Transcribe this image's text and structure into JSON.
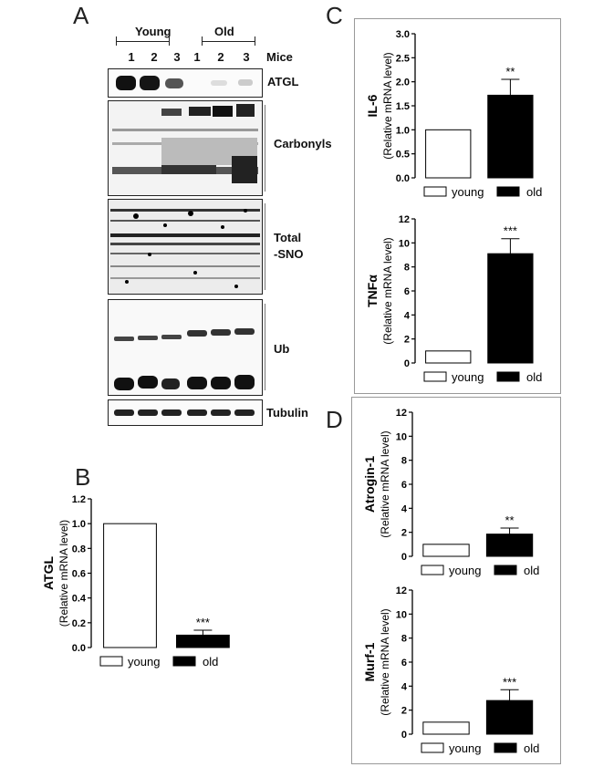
{
  "panels": {
    "a": "A",
    "b": "B",
    "c": "C",
    "d": "D"
  },
  "western": {
    "group_young": "Young",
    "group_old": "Old",
    "mice_label": "Mice",
    "lanes": [
      "1",
      "2",
      "3",
      "1",
      "2",
      "3"
    ],
    "blots": [
      {
        "label": "ATGL"
      },
      {
        "label": "Carbonyls"
      },
      {
        "label": "Total\n-SNO"
      },
      {
        "label": "Ub"
      },
      {
        "label": "Tubulin"
      }
    ]
  },
  "legend": {
    "young": "young",
    "old": "old"
  },
  "chart_data": [
    {
      "panel": "B",
      "type": "bar",
      "ytitle": "ATGL",
      "ylabel": "(Relative mRNA level)",
      "categories": [
        "young",
        "old"
      ],
      "values": [
        1.0,
        0.1
      ],
      "errors": [
        0,
        0.04
      ],
      "significance": "***",
      "ylim": [
        0,
        1.2
      ],
      "yticks": [
        "0.0",
        "0.2",
        "0.4",
        "0.6",
        "0.8",
        "1.0",
        "1.2"
      ]
    },
    {
      "panel": "C",
      "type": "bar",
      "ytitle": "IL-6",
      "ylabel": "(Relative mRNA level)",
      "categories": [
        "young",
        "old"
      ],
      "values": [
        1.0,
        1.72
      ],
      "errors": [
        0,
        0.33
      ],
      "significance": "**",
      "ylim": [
        0,
        3.0
      ],
      "yticks": [
        "0.0",
        "0.5",
        "1.0",
        "1.5",
        "2.0",
        "2.5",
        "3.0"
      ]
    },
    {
      "panel": "C",
      "type": "bar",
      "ytitle": "TNFα",
      "ylabel": "(Relative mRNA level)",
      "categories": [
        "young",
        "old"
      ],
      "values": [
        1.0,
        9.1
      ],
      "errors": [
        0,
        1.25
      ],
      "significance": "***",
      "ylim": [
        0,
        12
      ],
      "yticks": [
        "0",
        "2",
        "4",
        "6",
        "8",
        "10",
        "12"
      ]
    },
    {
      "panel": "D",
      "type": "bar",
      "ytitle": "Atrogin-1",
      "ylabel": "(Relative mRNA level)",
      "categories": [
        "young",
        "old"
      ],
      "values": [
        1.0,
        1.85
      ],
      "errors": [
        0,
        0.5
      ],
      "significance": "**",
      "ylim": [
        0,
        12
      ],
      "yticks": [
        "0",
        "2",
        "4",
        "6",
        "8",
        "10",
        "12"
      ]
    },
    {
      "panel": "D",
      "type": "bar",
      "ytitle": "Murf-1",
      "ylabel": "(Relative mRNA level)",
      "categories": [
        "young",
        "old"
      ],
      "values": [
        1.0,
        2.8
      ],
      "errors": [
        0,
        0.9
      ],
      "significance": "***",
      "ylim": [
        0,
        12
      ],
      "yticks": [
        "0",
        "2",
        "4",
        "6",
        "8",
        "10",
        "12"
      ]
    }
  ]
}
